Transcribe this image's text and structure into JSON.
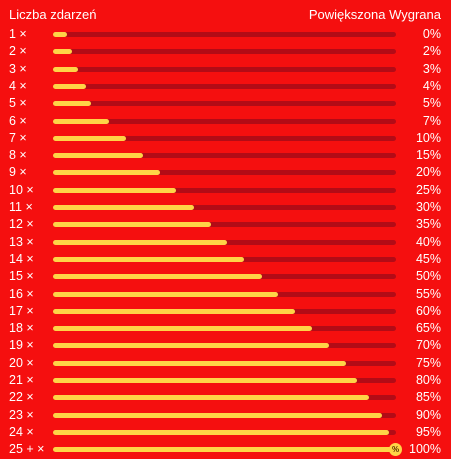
{
  "header": {
    "left_label": "Liczba zdarzeń",
    "right_label": "Powiększona Wygrana"
  },
  "colors": {
    "background": "#f50f0f",
    "track": "#b30b16",
    "fill": "#ffd447",
    "text": "#ffffff"
  },
  "rows": [
    {
      "count": "1 ×",
      "percent": "0%",
      "fill": 0.04
    },
    {
      "count": "2 ×",
      "percent": "2%",
      "fill": 0.055
    },
    {
      "count": "3 ×",
      "percent": "3%",
      "fill": 0.073
    },
    {
      "count": "4 ×",
      "percent": "4%",
      "fill": 0.095
    },
    {
      "count": "5 ×",
      "percent": "5%",
      "fill": 0.112
    },
    {
      "count": "6 ×",
      "percent": "7%",
      "fill": 0.162
    },
    {
      "count": "7 ×",
      "percent": "10%",
      "fill": 0.212
    },
    {
      "count": "8 ×",
      "percent": "15%",
      "fill": 0.262
    },
    {
      "count": "9 ×",
      "percent": "20%",
      "fill": 0.312
    },
    {
      "count": "10 ×",
      "percent": "25%",
      "fill": 0.36
    },
    {
      "count": "11 ×",
      "percent": "30%",
      "fill": 0.41
    },
    {
      "count": "12 ×",
      "percent": "35%",
      "fill": 0.46
    },
    {
      "count": "13 ×",
      "percent": "40%",
      "fill": 0.508
    },
    {
      "count": "14 ×",
      "percent": "45%",
      "fill": 0.558
    },
    {
      "count": "15 ×",
      "percent": "50%",
      "fill": 0.608
    },
    {
      "count": "16 ×",
      "percent": "55%",
      "fill": 0.656
    },
    {
      "count": "17 ×",
      "percent": "60%",
      "fill": 0.706
    },
    {
      "count": "18 ×",
      "percent": "65%",
      "fill": 0.756
    },
    {
      "count": "19 ×",
      "percent": "70%",
      "fill": 0.804
    },
    {
      "count": "20 ×",
      "percent": "75%",
      "fill": 0.854
    },
    {
      "count": "21 ×",
      "percent": "80%",
      "fill": 0.885
    },
    {
      "count": "22 ×",
      "percent": "85%",
      "fill": 0.922
    },
    {
      "count": "23 ×",
      "percent": "90%",
      "fill": 0.958
    },
    {
      "count": "24 ×",
      "percent": "95%",
      "fill": 0.98
    },
    {
      "count": "25 + ×",
      "percent": "100%",
      "fill": 1.0,
      "badge": "%"
    }
  ]
}
